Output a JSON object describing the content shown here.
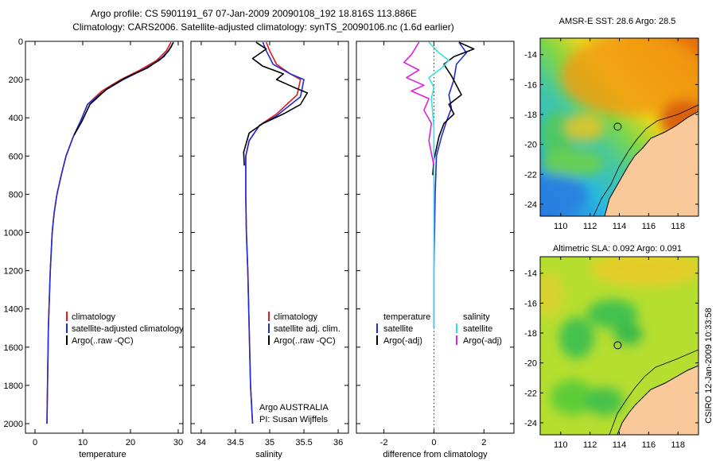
{
  "header": {
    "line1": "Argo profile: CS 5901191_67 07-Jan-2009 20090108_192 18.816S 113.886E",
    "line2": "Climatology: CARS2006. Satellite-adjusted climatology: synTS_20090106.nc (1.6d earlier)"
  },
  "colors": {
    "climatology": "#e41b1b",
    "satellite": "#1f2bd8",
    "argo": "#000000",
    "sal_satellite": "#33e0e0",
    "sal_argo": "#e020e0",
    "land": "#f9c99a",
    "coast": "#000000"
  },
  "footer": {
    "credit": "CSIRO 12-Jan-2009 10:33:58"
  },
  "chart_data": [
    {
      "id": "temperature",
      "type": "line",
      "xlabel": "temperature",
      "ylabel": "",
      "xlim": [
        -2,
        31
      ],
      "ylim": [
        2050,
        0
      ],
      "xticks": [
        "0",
        "10",
        "20",
        "30"
      ],
      "xtick_values": [
        0,
        10,
        20,
        30
      ],
      "yticks": [
        "0",
        "200",
        "400",
        "600",
        "800",
        "1000",
        "1200",
        "1400",
        "1600",
        "1800",
        "2000"
      ],
      "ytick_values": [
        0,
        200,
        400,
        600,
        800,
        1000,
        1200,
        1400,
        1600,
        1800,
        2000
      ],
      "legend": [
        "climatology",
        "satellite-adjusted climatology",
        "Argo(..raw -QC)"
      ],
      "series": [
        {
          "name": "climatology",
          "x": [
            28.5,
            27.5,
            25.5,
            22,
            18,
            14,
            11,
            9.5,
            8,
            6.5,
            5.5,
            4.6,
            4,
            3.6,
            3.2,
            2.8,
            2.5
          ],
          "y": [
            5,
            50,
            100,
            150,
            200,
            260,
            330,
            420,
            500,
            600,
            700,
            800,
            900,
            1000,
            1200,
            1500,
            2000
          ]
        },
        {
          "name": "satellite-adjusted climatology",
          "x": [
            29,
            28,
            26,
            22.5,
            18.5,
            14.5,
            11,
            9.5,
            8,
            6.5,
            5.5,
            4.6,
            4,
            3.6,
            3.2,
            2.8,
            2.5
          ],
          "y": [
            5,
            50,
            100,
            150,
            200,
            260,
            330,
            420,
            500,
            600,
            700,
            800,
            900,
            1000,
            1200,
            1500,
            2000
          ]
        },
        {
          "name": "Argo(..raw -QC)",
          "x": [
            29,
            28.5,
            27,
            23.5,
            19,
            15,
            11.5,
            9.8,
            8.2
          ],
          "y": [
            5,
            30,
            80,
            140,
            190,
            250,
            330,
            420,
            490
          ]
        }
      ]
    },
    {
      "id": "salinity",
      "type": "line",
      "xlabel": "salinity",
      "xlim": [
        33.85,
        36.15
      ],
      "ylim": [
        2050,
        0
      ],
      "xticks": [
        "34",
        "34.5",
        "35",
        "35.5",
        "36"
      ],
      "xtick_values": [
        34,
        34.5,
        35,
        35.5,
        36
      ],
      "legend": [
        "climatology",
        "satellite adj. clim.",
        "Argo(..raw -QC)"
      ],
      "annotation": [
        "Argo AUSTRALIA",
        "PI: Susan Wijffels"
      ],
      "series": [
        {
          "name": "climatology",
          "x": [
            34.95,
            35.0,
            35.1,
            35.3,
            35.45,
            35.4,
            35.1,
            34.85,
            34.7,
            34.65,
            34.65,
            34.66,
            34.68,
            34.7,
            34.72,
            34.75
          ],
          "y": [
            5,
            50,
            120,
            170,
            200,
            280,
            380,
            440,
            520,
            600,
            800,
            1000,
            1200,
            1500,
            1800,
            2000
          ]
        },
        {
          "name": "satellite adj. clim.",
          "x": [
            34.9,
            34.95,
            35.05,
            35.3,
            35.5,
            35.45,
            35.1,
            34.85,
            34.7,
            34.65,
            34.65,
            34.66,
            34.68,
            34.7,
            34.72,
            34.75
          ],
          "y": [
            5,
            50,
            120,
            170,
            200,
            290,
            390,
            440,
            520,
            600,
            800,
            1000,
            1200,
            1500,
            1800,
            2000
          ]
        },
        {
          "name": "Argo(..raw -QC)",
          "x": [
            34.8,
            34.95,
            34.75,
            34.9,
            35.2,
            35.1,
            35.35,
            35.55,
            35.45,
            35.2,
            34.9,
            34.7,
            34.62,
            34.63
          ],
          "y": [
            5,
            40,
            90,
            130,
            170,
            200,
            240,
            270,
            330,
            380,
            430,
            480,
            580,
            650
          ]
        }
      ]
    },
    {
      "id": "difference",
      "type": "line",
      "xlabel": "difference from climatology",
      "xlim": [
        -3.1,
        3.2
      ],
      "ylim": [
        2050,
        0
      ],
      "xticks": [
        "-2",
        "0",
        "2"
      ],
      "xtick_values": [
        -2,
        0,
        2
      ],
      "legend_headers": [
        "temperature",
        "salinity"
      ],
      "legend": [
        "satellite",
        "Argo(-adj)",
        "satellite",
        "Argo(-adj)"
      ],
      "series": [
        {
          "name": "temperature satellite",
          "x": [
            1.0,
            1.3,
            0.9,
            0.8,
            0.6,
            0.7,
            0.5,
            0.3,
            0.1,
            0.05,
            0.0,
            0.0
          ],
          "y": [
            5,
            60,
            120,
            200,
            280,
            350,
            420,
            500,
            600,
            800,
            1200,
            1500
          ]
        },
        {
          "name": "temperature Argo(-adj)",
          "x": [
            1.0,
            1.6,
            0.8,
            0.4,
            0.7,
            0.9,
            1.1,
            0.6,
            0.8,
            0.4,
            0.2,
            0.1,
            0.0,
            -0.05
          ],
          "y": [
            5,
            40,
            80,
            120,
            180,
            230,
            280,
            330,
            380,
            430,
            500,
            560,
            620,
            700
          ]
        },
        {
          "name": "salinity satellite",
          "x": [
            -0.2,
            0.2,
            0.6,
            0.3,
            -0.2,
            0.0,
            -0.1,
            0.0,
            0.0,
            0.0,
            0.0
          ],
          "y": [
            5,
            60,
            100,
            140,
            190,
            240,
            300,
            450,
            700,
            1200,
            1500
          ]
        },
        {
          "name": "salinity Argo(-adj)",
          "x": [
            -0.6,
            -0.9,
            -1.2,
            -0.6,
            -1.1,
            -0.4,
            -0.9,
            -0.2,
            -0.4,
            -0.1,
            -0.2,
            0.0
          ],
          "y": [
            5,
            70,
            110,
            150,
            190,
            230,
            260,
            300,
            360,
            430,
            520,
            650
          ]
        }
      ]
    },
    {
      "id": "amsre-sst-map",
      "type": "heatmap",
      "title": "AMSR-E SST: 28.6 Argo: 28.5",
      "xlim": [
        108.6,
        119.4
      ],
      "ylim": [
        -24.8,
        -12.9
      ],
      "xticks": [
        "110",
        "112",
        "114",
        "116",
        "118"
      ],
      "xtick_values": [
        110,
        112,
        114,
        116,
        118
      ],
      "yticks": [
        "-14",
        "-16",
        "-18",
        "-20",
        "-22",
        "-24"
      ],
      "ytick_values": [
        -14,
        -16,
        -18,
        -20,
        -22,
        -24
      ],
      "float_marker": {
        "lon": 113.886,
        "lat": -18.816
      }
    },
    {
      "id": "altimetric-sla-map",
      "type": "heatmap",
      "title": "Altimetric SLA: 0.092 Argo: 0.091",
      "xlim": [
        108.6,
        119.4
      ],
      "ylim": [
        -24.8,
        -12.9
      ],
      "xticks": [
        "110",
        "112",
        "114",
        "116",
        "118"
      ],
      "xtick_values": [
        110,
        112,
        114,
        116,
        118
      ],
      "yticks": [
        "-14",
        "-16",
        "-18",
        "-20",
        "-22",
        "-24"
      ],
      "ytick_values": [
        -14,
        -16,
        -18,
        -20,
        -22,
        -24
      ],
      "float_marker": {
        "lon": 113.886,
        "lat": -18.816
      }
    }
  ]
}
